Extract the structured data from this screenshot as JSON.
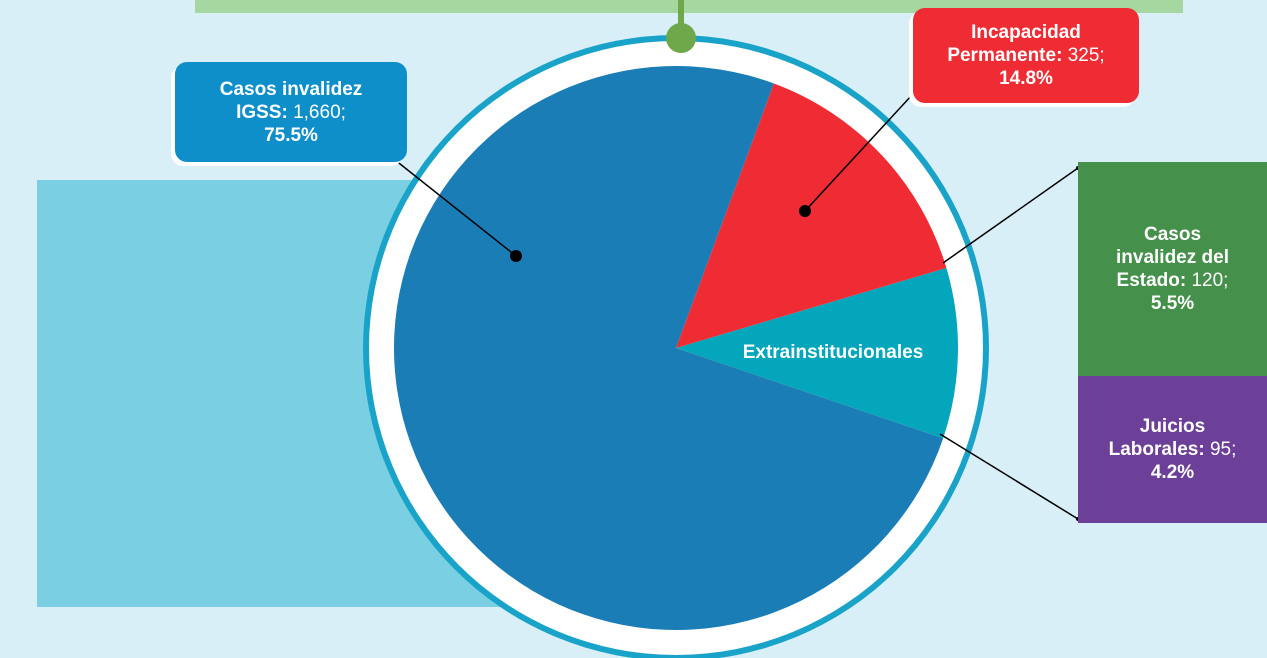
{
  "chart_data": {
    "type": "pie",
    "title": "",
    "slices": [
      {
        "label": "Casos invalidez IGSS",
        "value": 1660,
        "percent": 75.5,
        "color": "#1b7db6"
      },
      {
        "label": "Incapacidad Permanente",
        "value": 325,
        "percent": 14.8,
        "color": "#ef2b34"
      },
      {
        "label": "Extrainstitucionales",
        "value": 215,
        "percent": 9.7,
        "color": "#04a6bb"
      }
    ],
    "breakdown": {
      "parent": "Extrainstitucionales",
      "items": [
        {
          "label": "Casos invalidez del Estado",
          "value": 120,
          "percent": 5.5,
          "color": "#45904a"
        },
        {
          "label": "Juicios Laborales",
          "value": 95,
          "percent": 4.2,
          "color": "#6c3f98"
        }
      ]
    }
  },
  "labels": {
    "igss_name_1": "Casos invalidez",
    "igss_name_2": "IGSS:",
    "igss_value": " 1,660;",
    "igss_pct": "75.5%",
    "inc_name_1": "Incapacidad",
    "inc_name_2": "Permanente:",
    "inc_value": " 325;",
    "inc_pct": "14.8%",
    "extra_label": "Extrainstitucionales",
    "estado_name_1": "Casos",
    "estado_name_2": "invalidez del",
    "estado_name_3": "Estado:",
    "estado_value": " 120;",
    "estado_pct": "5.5%",
    "juicios_name_1": "Juicios",
    "juicios_name_2": "Laborales:",
    "juicios_value": " 95;",
    "juicios_pct": "4.2%"
  },
  "colors": {
    "background": "#d8eff7",
    "ring_outer": "#1aa3c9",
    "ring_inner": "#ffffff",
    "connector": "#6ea84a",
    "leader": "#000000"
  }
}
